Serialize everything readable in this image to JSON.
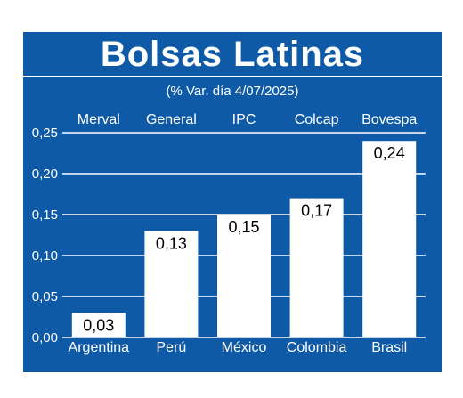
{
  "header": {
    "title": "Bolsas Latinas",
    "subtitle": "(% Var. día 4/07/2025)"
  },
  "colors": {
    "panel": "#0e5aa6",
    "bar": "#ffffff",
    "gridline": "#ffffff",
    "text": "#ffffff",
    "value_text": "#000000"
  },
  "chart_data": {
    "type": "bar",
    "title": "Bolsas Latinas",
    "subtitle": "(% Var. día 4/07/2025)",
    "categories": [
      "Argentina",
      "Perú",
      "México",
      "Colombia",
      "Brasil"
    ],
    "index_names": [
      "Merval",
      "General",
      "IPC",
      "Colcap",
      "Bovespa"
    ],
    "values": [
      0.03,
      0.13,
      0.15,
      0.17,
      0.24
    ],
    "value_labels": [
      "0,03",
      "0,13",
      "0,15",
      "0,17",
      "0,24"
    ],
    "ylim": [
      0,
      0.25
    ],
    "yticks": [
      "0,00",
      "0,05",
      "0,10",
      "0,15",
      "0,20",
      "0,25"
    ],
    "grid": true,
    "xlabel": "",
    "ylabel": ""
  }
}
